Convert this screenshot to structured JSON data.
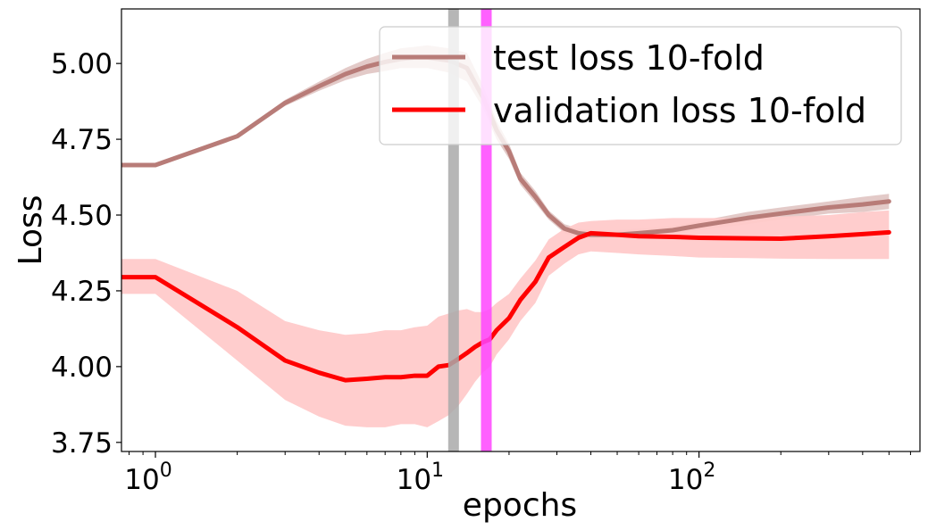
{
  "chart_data": {
    "type": "line",
    "title": "",
    "xlabel": "epochs",
    "ylabel": "Loss",
    "x_scale": "log",
    "xlim": [
      0.75,
      650
    ],
    "ylim": [
      3.72,
      5.18
    ],
    "xticks": [
      {
        "value": 1,
        "base": "10",
        "exp": "0"
      },
      {
        "value": 10,
        "base": "10",
        "exp": "1"
      },
      {
        "value": 100,
        "base": "10",
        "exp": "2"
      }
    ],
    "yticks": [
      {
        "value": 3.75,
        "label": "3.75"
      },
      {
        "value": 4.0,
        "label": "4.00"
      },
      {
        "value": 4.25,
        "label": "4.25"
      },
      {
        "value": 4.5,
        "label": "4.50"
      },
      {
        "value": 4.75,
        "label": "4.75"
      },
      {
        "value": 5.0,
        "label": "5.00"
      }
    ],
    "grid": false,
    "legend_position": "top-right",
    "series": [
      {
        "name": "test loss 10-fold",
        "color": "#b87c78",
        "band_color": "#d9b8b5",
        "x": [
          0.75,
          1,
          2,
          3,
          4,
          5,
          6,
          7,
          8,
          9,
          10,
          12,
          14,
          16,
          18,
          20,
          22,
          25,
          28,
          32,
          36,
          40,
          50,
          60,
          80,
          100,
          150,
          200,
          300,
          400,
          500
        ],
        "y": [
          4.665,
          4.665,
          4.76,
          4.87,
          4.925,
          4.965,
          4.99,
          5.005,
          5.015,
          5.02,
          5.02,
          5.01,
          4.985,
          4.89,
          4.78,
          4.71,
          4.62,
          4.56,
          4.5,
          4.455,
          4.44,
          4.435,
          4.435,
          4.44,
          4.45,
          4.465,
          4.49,
          4.505,
          4.525,
          4.535,
          4.545
        ],
        "lower": [
          4.665,
          4.665,
          4.755,
          4.86,
          4.91,
          4.945,
          4.965,
          4.975,
          4.985,
          4.985,
          4.985,
          4.97,
          4.94,
          4.855,
          4.75,
          4.685,
          4.6,
          4.54,
          4.485,
          4.44,
          4.425,
          4.42,
          4.42,
          4.425,
          4.435,
          4.45,
          4.47,
          4.485,
          4.505,
          4.51,
          4.52
        ],
        "upper": [
          4.665,
          4.665,
          4.765,
          4.88,
          4.94,
          4.985,
          5.015,
          5.035,
          5.05,
          5.055,
          5.06,
          5.05,
          5.035,
          4.93,
          4.81,
          4.735,
          4.64,
          4.58,
          4.515,
          4.47,
          4.455,
          4.45,
          4.45,
          4.455,
          4.465,
          4.48,
          4.51,
          4.525,
          4.545,
          4.56,
          4.57
        ]
      },
      {
        "name": "validation loss 10-fold",
        "color": "#ff0000",
        "band_color": "#ffcaca",
        "x": [
          0.75,
          1,
          2,
          3,
          4,
          5,
          6,
          7,
          8,
          9,
          10,
          11,
          12,
          13,
          14,
          15,
          16,
          17,
          18,
          20,
          22,
          25,
          28,
          32,
          36,
          40,
          50,
          60,
          80,
          100,
          150,
          200,
          300,
          400,
          500
        ],
        "y": [
          4.295,
          4.295,
          4.13,
          4.02,
          3.98,
          3.955,
          3.96,
          3.965,
          3.965,
          3.97,
          3.97,
          4.0,
          4.005,
          4.025,
          4.045,
          4.065,
          4.08,
          4.09,
          4.12,
          4.16,
          4.22,
          4.28,
          4.36,
          4.395,
          4.425,
          4.44,
          4.435,
          4.43,
          4.428,
          4.425,
          4.423,
          4.422,
          4.43,
          4.437,
          4.443
        ],
        "lower": [
          4.24,
          4.24,
          4.02,
          3.89,
          3.835,
          3.805,
          3.8,
          3.8,
          3.81,
          3.81,
          3.8,
          3.82,
          3.84,
          3.87,
          3.91,
          3.95,
          3.98,
          4.0,
          4.04,
          4.09,
          4.15,
          4.21,
          4.3,
          4.34,
          4.37,
          4.38,
          4.375,
          4.37,
          4.365,
          4.36,
          4.358,
          4.356,
          4.355,
          4.355,
          4.355
        ],
        "upper": [
          4.355,
          4.355,
          4.25,
          4.15,
          4.12,
          4.105,
          4.11,
          4.12,
          4.12,
          4.13,
          4.135,
          4.165,
          4.175,
          4.185,
          4.19,
          4.18,
          4.18,
          4.19,
          4.21,
          4.24,
          4.29,
          4.35,
          4.42,
          4.455,
          4.475,
          4.48,
          4.485,
          4.485,
          4.49,
          4.49,
          4.49,
          4.495,
          4.5,
          4.51,
          4.515
        ]
      }
    ],
    "vertical_markers": [
      {
        "x": 12.5,
        "color": "#a9a9a9"
      },
      {
        "x": 16.5,
        "color": "#ff44ff"
      }
    ]
  }
}
